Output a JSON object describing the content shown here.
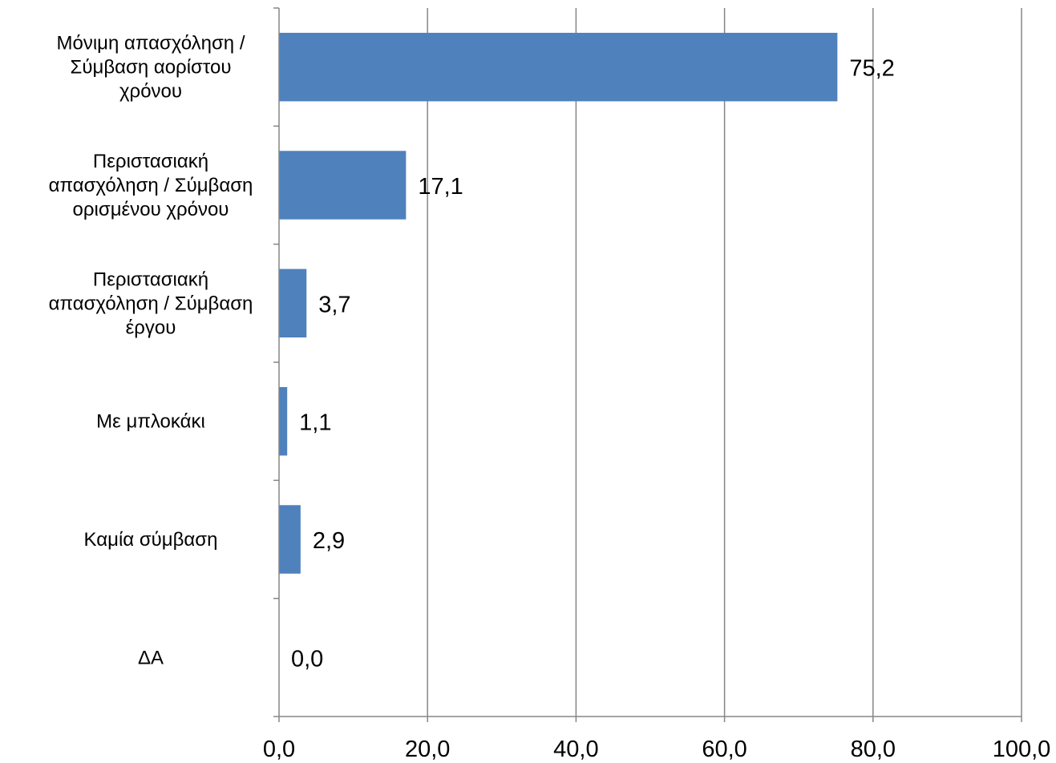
{
  "chart_data": {
    "type": "bar",
    "orientation": "horizontal",
    "categories": [
      [
        "Μόνιμη απασχόληση /",
        "Σύμβαση αορίστου",
        "χρόνου"
      ],
      [
        "Περιστασιακή",
        "απασχόληση /  Σύμβαση",
        "ορισμένου χρόνου"
      ],
      [
        "Περιστασιακή",
        "απασχόληση / Σύμβαση",
        "έργου"
      ],
      [
        "Με μπλοκάκι"
      ],
      [
        "Καμία σύμβαση"
      ],
      [
        "ΔΑ"
      ]
    ],
    "values": [
      75.2,
      17.1,
      3.7,
      1.1,
      2.9,
      0.0
    ],
    "data_labels": [
      "75,2",
      "17,1",
      "3,7",
      "1,1",
      "2,9",
      "0,0"
    ],
    "xlim": [
      0,
      100
    ],
    "x_ticks": [
      0,
      20,
      40,
      60,
      80,
      100
    ],
    "x_tick_labels": [
      "0,0",
      "20,0",
      "40,0",
      "60,0",
      "80,0",
      "100,0"
    ],
    "bar_color": "#4F81BD",
    "grid": "vertical",
    "legend": "none"
  }
}
